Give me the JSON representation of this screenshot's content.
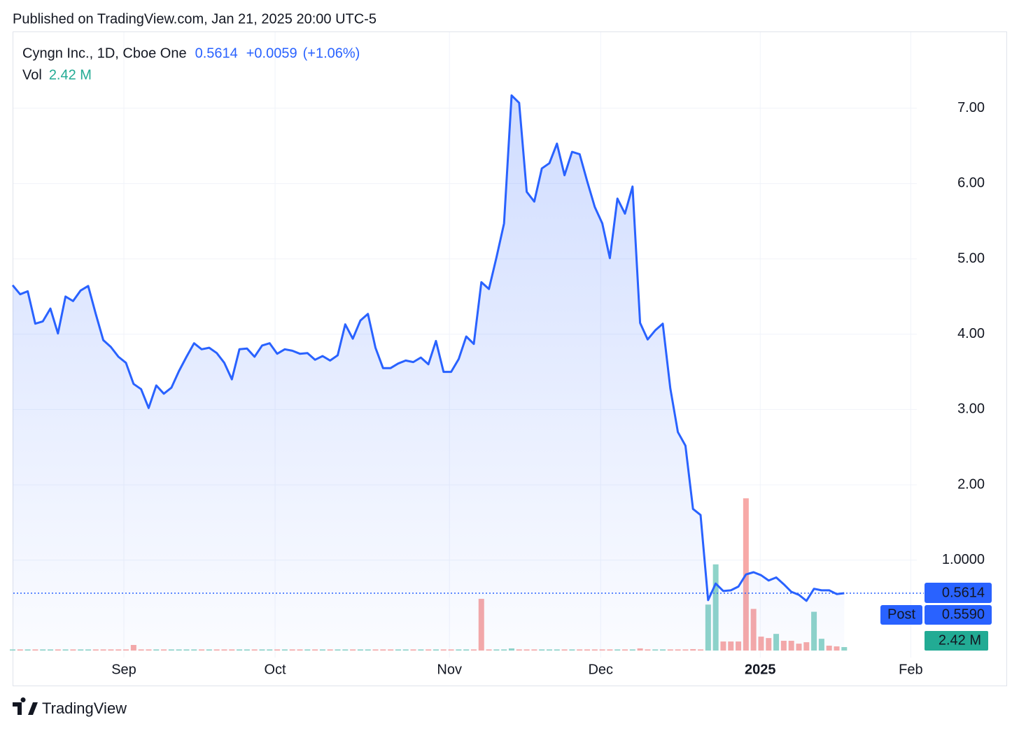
{
  "header": {
    "published": "Published on TradingView.com, Jan 21, 2025 20:00 UTC-5"
  },
  "footer": {
    "brand": "TradingView"
  },
  "chart_data": {
    "type": "line",
    "change": "+0.0059",
    "change_percent": "(+1.06%)",
    "post_label": "Post",
    "post_price": 0.559,
    "post_price_label": "0.5590",
    "grid": true,
    "x": [
      0,
      1,
      2,
      3,
      4,
      5,
      6,
      7,
      8,
      9,
      10,
      11,
      12,
      13,
      14,
      15,
      16,
      17,
      18,
      19,
      20,
      21,
      22,
      23,
      24,
      25,
      26,
      27,
      28,
      29,
      30,
      31,
      32,
      33,
      34,
      35,
      36,
      37,
      38,
      39,
      40,
      41,
      42,
      43,
      44,
      45,
      46,
      47,
      48,
      49,
      50,
      51,
      52,
      53,
      54,
      55,
      56,
      57,
      58,
      59,
      60,
      61,
      62,
      63,
      64,
      65,
      66,
      67,
      68,
      69,
      70,
      71,
      72,
      73,
      74,
      75,
      76,
      77,
      78,
      79,
      80,
      81,
      82,
      83,
      84,
      85,
      86,
      87,
      88,
      89,
      90,
      91,
      92,
      93,
      94,
      95,
      96,
      97,
      98,
      99,
      100,
      101,
      102,
      103,
      104,
      105,
      106,
      107,
      108,
      109,
      110
    ],
    "xlim": [
      0,
      119.6
    ],
    "xticks": [
      {
        "value": 14.72,
        "label": "Sep"
      },
      {
        "value": 34.72,
        "label": "Oct"
      },
      {
        "value": 57.78,
        "label": "Nov"
      },
      {
        "value": 77.78,
        "label": "Dec"
      },
      {
        "value": 98.89,
        "label": "2025"
      },
      {
        "value": 118.8,
        "label": "Feb"
      }
    ],
    "ylim": [
      -0.2,
      8
    ],
    "yticks": [
      {
        "value": 1,
        "label": "1.0000"
      },
      {
        "value": 2,
        "label": "2.00"
      },
      {
        "value": 3,
        "label": "3.00"
      },
      {
        "value": 4,
        "label": "4.00"
      },
      {
        "value": 5,
        "label": "5.00"
      },
      {
        "value": 6,
        "label": "6.00"
      },
      {
        "value": 7,
        "label": "7.00"
      }
    ],
    "y2lim": [
      0,
      430
    ],
    "series": [
      {
        "name": "Cyngn Inc., 1D, Cboe One",
        "color": "#2962ff",
        "values": [
          4.65,
          4.53,
          4.57,
          4.14,
          4.17,
          4.34,
          4.01,
          4.5,
          4.44,
          4.58,
          4.64,
          4.27,
          3.92,
          3.83,
          3.7,
          3.62,
          3.34,
          3.27,
          3.02,
          3.32,
          3.21,
          3.29,
          3.51,
          3.7,
          3.88,
          3.8,
          3.82,
          3.75,
          3.62,
          3.4,
          3.8,
          3.81,
          3.7,
          3.85,
          3.88,
          3.74,
          3.8,
          3.78,
          3.74,
          3.75,
          3.66,
          3.71,
          3.65,
          3.72,
          4.13,
          3.94,
          4.18,
          4.27,
          3.82,
          3.55,
          3.55,
          3.61,
          3.65,
          3.63,
          3.69,
          3.6,
          3.91,
          3.5,
          3.5,
          3.67,
          3.97,
          3.87,
          4.69,
          4.6,
          5.02,
          5.47,
          7.17,
          7.07,
          5.89,
          5.76,
          6.2,
          6.27,
          6.53,
          6.11,
          6.42,
          6.39,
          6.03,
          5.69,
          5.47,
          5.01,
          5.8,
          5.6,
          5.96,
          4.15,
          3.93,
          4.05,
          4.14,
          3.28,
          2.7,
          2.52,
          1.68,
          1.6,
          0.47,
          0.69,
          0.59,
          0.6,
          0.65,
          0.81,
          0.84,
          0.8,
          0.73,
          0.77,
          0.68,
          0.58,
          0.54,
          0.46,
          0.62,
          0.6,
          0.6,
          0.55,
          0.5614
        ]
      },
      {
        "name": "Vol",
        "axis": "y2",
        "type": "bar",
        "last_label": "2.42 M",
        "label_color": "#22ab94",
        "values": [
          0.8,
          0.8,
          0.8,
          0.8,
          0.8,
          0.8,
          0.8,
          0.8,
          0.8,
          0.8,
          0.8,
          0.8,
          0.8,
          0.8,
          0.8,
          0.8,
          3.9,
          0.8,
          0.8,
          0.8,
          0.8,
          0.8,
          0.8,
          0.8,
          0.8,
          0.8,
          0.8,
          0.8,
          0.8,
          0.8,
          0.8,
          0.8,
          0.8,
          0.8,
          0.8,
          0.8,
          0.8,
          0.8,
          0.8,
          0.8,
          0.8,
          0.8,
          0.8,
          0.8,
          0.8,
          0.8,
          0.8,
          0.8,
          0.8,
          0.8,
          0.8,
          0.8,
          0.8,
          0.8,
          0.8,
          0.8,
          0.8,
          0.8,
          0.8,
          0.8,
          0.8,
          0.8,
          36,
          0.8,
          0.8,
          0.8,
          1.5,
          0.8,
          0.8,
          0.8,
          0.8,
          0.8,
          0.8,
          0.8,
          0.8,
          0.8,
          0.8,
          0.8,
          0.8,
          0.8,
          0.8,
          0.8,
          0.8,
          1.5,
          0.8,
          0.8,
          0.8,
          0.8,
          0.8,
          0.8,
          1.0,
          0.8,
          32,
          60,
          6.3,
          6.3,
          6.3,
          106,
          29,
          9.7,
          8.7,
          11.6,
          6.8,
          6.8,
          4.8,
          5.8,
          27,
          8.2,
          3.4,
          2.9,
          2.42
        ],
        "colors": [
          "#8fd4c9",
          "#f7a9a7",
          "#8fd4c9",
          "#f7a9a7",
          "#8fd4c9",
          "#8fd4c9",
          "#f7a9a7",
          "#8fd4c9",
          "#f7a9a7",
          "#8fd4c9",
          "#8fd4c9",
          "#f7a9a7",
          "#f7a9a7",
          "#f7a9a7",
          "#f7a9a7",
          "#f7a9a7",
          "#f7a9a7",
          "#f7a9a7",
          "#f7a9a7",
          "#8fd4c9",
          "#f7a9a7",
          "#8fd4c9",
          "#8fd4c9",
          "#8fd4c9",
          "#8fd4c9",
          "#f7a9a7",
          "#8fd4c9",
          "#f7a9a7",
          "#f7a9a7",
          "#f7a9a7",
          "#8fd4c9",
          "#8fd4c9",
          "#f7a9a7",
          "#8fd4c9",
          "#8fd4c9",
          "#f7a9a7",
          "#8fd4c9",
          "#f7a9a7",
          "#f7a9a7",
          "#8fd4c9",
          "#f7a9a7",
          "#8fd4c9",
          "#f7a9a7",
          "#8fd4c9",
          "#8fd4c9",
          "#f7a9a7",
          "#8fd4c9",
          "#8fd4c9",
          "#f7a9a7",
          "#f7a9a7",
          "#f7a9a7",
          "#8fd4c9",
          "#8fd4c9",
          "#f7a9a7",
          "#8fd4c9",
          "#f7a9a7",
          "#8fd4c9",
          "#f7a9a7",
          "#f7a9a7",
          "#8fd4c9",
          "#8fd4c9",
          "#f7a9a7",
          "#f7a9a7",
          "#f7a9a7",
          "#8fd4c9",
          "#8fd4c9",
          "#8fd4c9",
          "#f7a9a7",
          "#f7a9a7",
          "#f7a9a7",
          "#8fd4c9",
          "#8fd4c9",
          "#8fd4c9",
          "#f7a9a7",
          "#8fd4c9",
          "#f7a9a7",
          "#f7a9a7",
          "#f7a9a7",
          "#f7a9a7",
          "#f7a9a7",
          "#8fd4c9",
          "#f7a9a7",
          "#8fd4c9",
          "#f7a9a7",
          "#f7a9a7",
          "#8fd4c9",
          "#8fd4c9",
          "#f7a9a7",
          "#f7a9a7",
          "#f7a9a7",
          "#f7a9a7",
          "#f7a9a7",
          "#8fd4c9",
          "#8fd4c9",
          "#f7a9a7",
          "#f7a9a7",
          "#f7a9a7",
          "#f7a9a7",
          "#f7a9a7",
          "#f7a9a7",
          "#f7a9a7",
          "#8fd4c9",
          "#f7a9a7",
          "#f7a9a7",
          "#f7a9a7",
          "#f7a9a7",
          "#8fd4c9",
          "#8fd4c9",
          "#f7a9a7",
          "#f7a9a7",
          "#8fd4c9"
        ]
      }
    ]
  }
}
